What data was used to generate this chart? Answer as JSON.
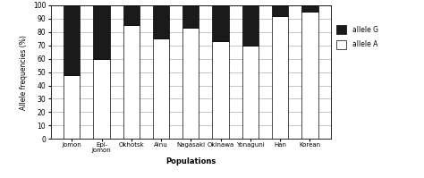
{
  "categories": [
    "Jomon",
    "Epi-\nJomon",
    "Okhotsk",
    "Ainu",
    "Nagasaki",
    "Okinawa",
    "Yonaguni",
    "Han",
    "Korean"
  ],
  "allele_G": [
    52,
    40,
    15,
    25,
    17,
    27,
    30,
    8,
    5
  ],
  "allele_A": [
    48,
    60,
    85,
    75,
    83,
    73,
    70,
    92,
    95
  ],
  "color_G": "#1a1a1a",
  "color_A": "#ffffff",
  "ylabel": "Allele frequencies (%)",
  "xlabel": "Populations",
  "ylim": [
    0,
    100
  ],
  "yticks": [
    0,
    10,
    20,
    30,
    40,
    50,
    60,
    70,
    80,
    90,
    100
  ],
  "legend_G": "allele G",
  "legend_A": "allele A",
  "bar_edgecolor": "#000000",
  "bar_width": 0.55,
  "figsize": [
    4.74,
    1.99
  ],
  "dpi": 100
}
